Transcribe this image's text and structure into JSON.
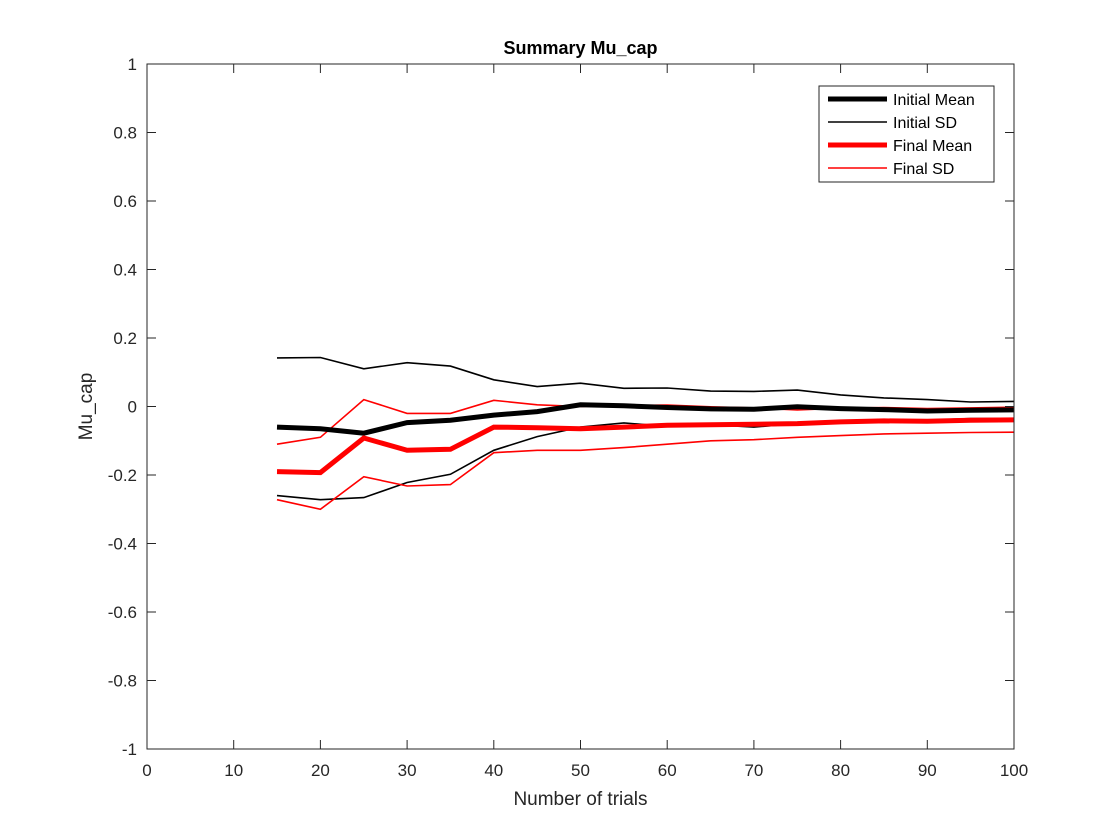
{
  "chart_data": {
    "type": "line",
    "title": "Summary Mu_cap",
    "xlabel": "Number of trials",
    "ylabel": "Mu_cap",
    "xlim": [
      0,
      100
    ],
    "ylim": [
      -1,
      1
    ],
    "xticks": [
      0,
      10,
      20,
      30,
      40,
      50,
      60,
      70,
      80,
      90,
      100
    ],
    "yticks": [
      -1,
      -0.8,
      -0.6,
      -0.4,
      -0.2,
      0,
      0.2,
      0.4,
      0.6,
      0.8,
      1
    ],
    "xtick_labels": [
      "0",
      "10",
      "20",
      "30",
      "40",
      "50",
      "60",
      "70",
      "80",
      "90",
      "100"
    ],
    "ytick_labels": [
      "-1",
      "-0.8",
      "-0.6",
      "-0.4",
      "-0.2",
      "0",
      "0.2",
      "0.4",
      "0.6",
      "0.8",
      "1"
    ],
    "grid": false,
    "legend_position": "top-right",
    "x": [
      15,
      20,
      25,
      30,
      35,
      40,
      45,
      50,
      55,
      60,
      65,
      70,
      75,
      80,
      85,
      90,
      95,
      100
    ],
    "series": [
      {
        "name": "Initial Mean",
        "color": "#000000",
        "style": "thick",
        "values": [
          -0.06,
          -0.065,
          -0.078,
          -0.047,
          -0.04,
          -0.025,
          -0.015,
          0.005,
          0.002,
          -0.003,
          -0.007,
          -0.008,
          -0.001,
          -0.006,
          -0.009,
          -0.013,
          -0.011,
          -0.01
        ]
      },
      {
        "name": "Initial SD",
        "color": "#000000",
        "style": "thin",
        "values": [
          0.142,
          0.143,
          0.11,
          0.128,
          0.118,
          0.078,
          0.058,
          0.068,
          0.053,
          0.054,
          0.045,
          0.044,
          0.048,
          0.034,
          0.025,
          0.02,
          0.013,
          0.015
        ]
      },
      {
        "name": "Initial SD",
        "color": "#000000",
        "style": "thin",
        "values": [
          -0.26,
          -0.272,
          -0.266,
          -0.222,
          -0.198,
          -0.128,
          -0.088,
          -0.06,
          -0.048,
          -0.058,
          -0.053,
          -0.06,
          -0.05,
          -0.045,
          -0.042,
          -0.04,
          -0.035,
          -0.035
        ]
      },
      {
        "name": "Final Mean",
        "color": "#ff0000",
        "style": "thick",
        "values": [
          -0.19,
          -0.193,
          -0.092,
          -0.128,
          -0.125,
          -0.06,
          -0.062,
          -0.065,
          -0.06,
          -0.055,
          -0.053,
          -0.052,
          -0.05,
          -0.045,
          -0.042,
          -0.043,
          -0.04,
          -0.039
        ]
      },
      {
        "name": "Final SD",
        "color": "#ff0000",
        "style": "thin",
        "values": [
          -0.11,
          -0.09,
          0.02,
          -0.02,
          -0.02,
          0.018,
          0.005,
          0.0,
          0.003,
          0.004,
          -0.001,
          -0.004,
          -0.01,
          -0.005,
          -0.003,
          -0.006,
          -0.004,
          -0.002
        ]
      },
      {
        "name": "Final SD",
        "color": "#ff0000",
        "style": "thin",
        "values": [
          -0.272,
          -0.3,
          -0.205,
          -0.232,
          -0.228,
          -0.135,
          -0.128,
          -0.128,
          -0.12,
          -0.11,
          -0.1,
          -0.097,
          -0.09,
          -0.085,
          -0.08,
          -0.078,
          -0.076,
          -0.075
        ]
      }
    ],
    "legend": [
      {
        "label": "Initial Mean",
        "color": "#000000",
        "style": "thick"
      },
      {
        "label": "Initial SD",
        "color": "#000000",
        "style": "thin"
      },
      {
        "label": "Final Mean",
        "color": "#ff0000",
        "style": "thick"
      },
      {
        "label": "Final SD",
        "color": "#ff0000",
        "style": "thin"
      }
    ]
  }
}
